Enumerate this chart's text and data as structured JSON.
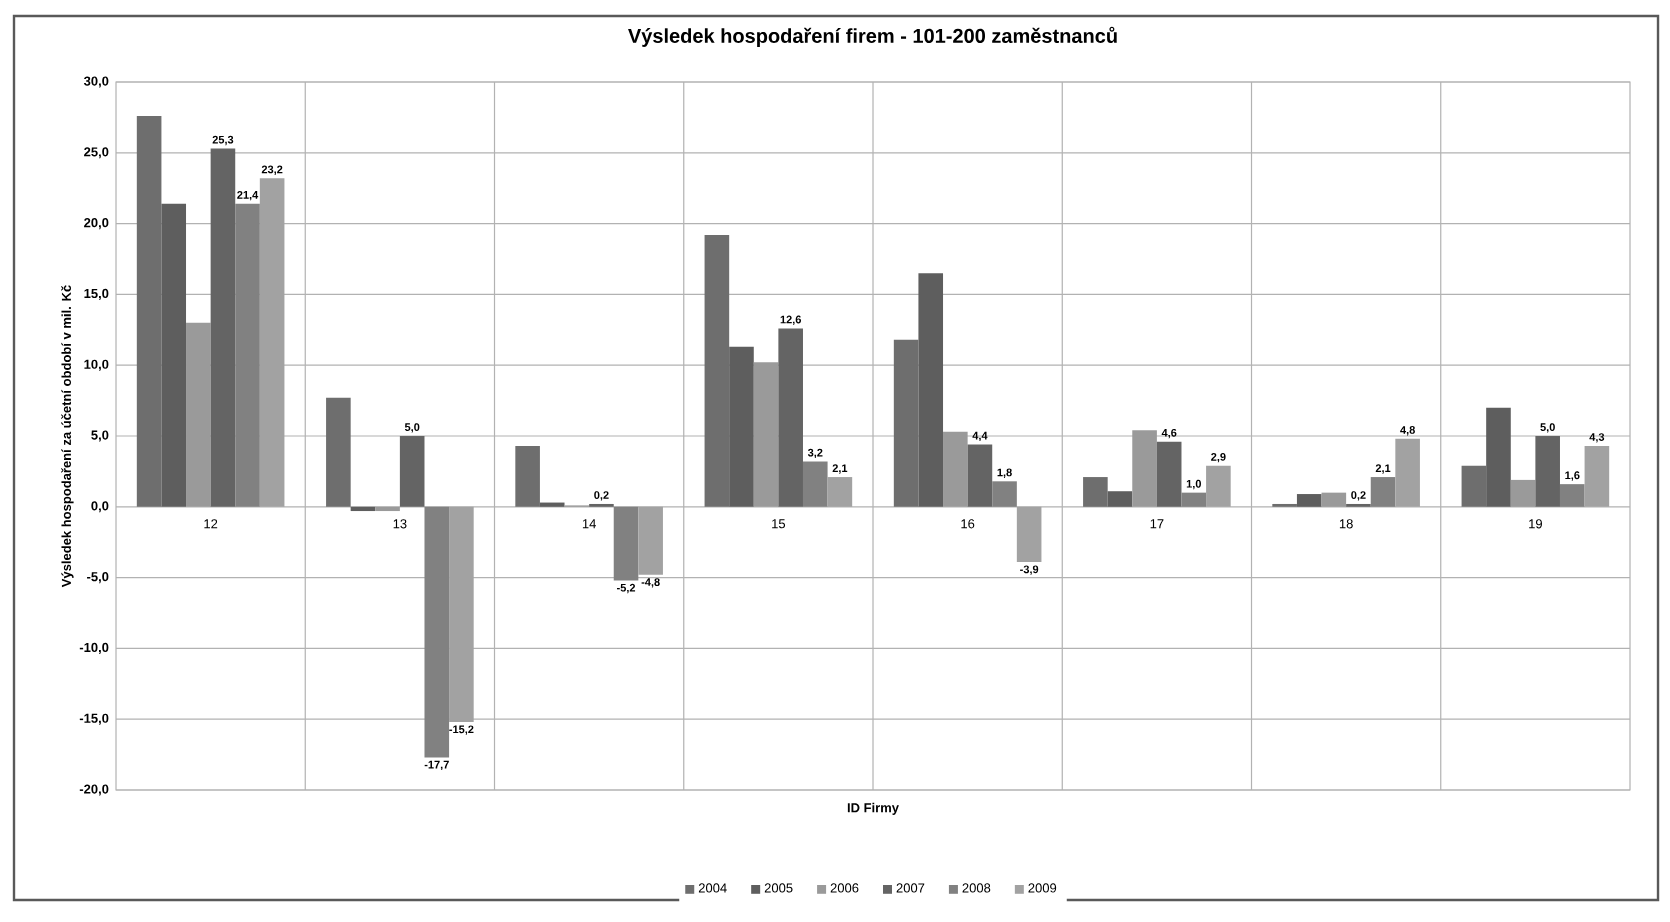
{
  "chart_data": {
    "type": "bar",
    "title": "Výsledek hospodaření firem - 101-200 zaměstnanců",
    "xlabel": "ID Firmy",
    "ylabel": "Výsledek hospodaření za účetní období v mil. Kč",
    "categories": [
      "12",
      "13",
      "14",
      "15",
      "16",
      "17",
      "18",
      "19"
    ],
    "series": [
      {
        "name": "2004",
        "color": "#6e6e6e",
        "values": [
          27.6,
          7.7,
          4.3,
          19.2,
          11.8,
          2.1,
          0.2,
          2.9
        ]
      },
      {
        "name": "2005",
        "color": "#5e5e5e",
        "values": [
          21.4,
          -0.3,
          0.3,
          11.3,
          16.5,
          1.1,
          0.9,
          7.0
        ]
      },
      {
        "name": "2006",
        "color": "#9a9a9a",
        "values": [
          13.0,
          -0.3,
          0.1,
          10.2,
          5.3,
          5.4,
          1.0,
          1.9
        ]
      },
      {
        "name": "2007",
        "color": "#646464",
        "values": [
          25.3,
          5.0,
          0.2,
          12.6,
          4.4,
          4.6,
          0.2,
          5.0
        ],
        "value_labels": [
          "25,3",
          "5,0",
          "0,2",
          "12,6",
          "4,4",
          "4,6",
          "0,2",
          "5,0"
        ]
      },
      {
        "name": "2008",
        "color": "#818181",
        "values": [
          21.4,
          -17.7,
          -5.2,
          3.2,
          1.8,
          1.0,
          2.1,
          1.6
        ],
        "value_labels": [
          "21,4",
          "-17,7",
          "-5,2",
          "3,2",
          "1,8",
          "1,0",
          "2,1",
          "1,6"
        ]
      },
      {
        "name": "2009",
        "color": "#a2a2a2",
        "values": [
          23.2,
          -15.2,
          -4.8,
          2.1,
          -3.9,
          2.9,
          4.8,
          4.3
        ],
        "value_labels": [
          "23,2",
          "-15,2",
          "-4,8",
          "2,1",
          "-3,9",
          "2,9",
          "4,8",
          "4,3"
        ]
      }
    ],
    "ylim": [
      -20,
      30
    ],
    "yticks": [
      {
        "value": -20,
        "label": "-20,0"
      },
      {
        "value": -15,
        "label": "-15,0"
      },
      {
        "value": -10,
        "label": "-10,0"
      },
      {
        "value": -5,
        "label": "-5,0"
      },
      {
        "value": 0,
        "label": "0,0"
      },
      {
        "value": 5,
        "label": "5,0"
      },
      {
        "value": 10,
        "label": "10,0"
      },
      {
        "value": 15,
        "label": "15,0"
      },
      {
        "value": 20,
        "label": "20,0"
      },
      {
        "value": 25,
        "label": "25,0"
      },
      {
        "value": 30,
        "label": "30,0"
      }
    ],
    "grid": true,
    "legend": "bottom"
  }
}
